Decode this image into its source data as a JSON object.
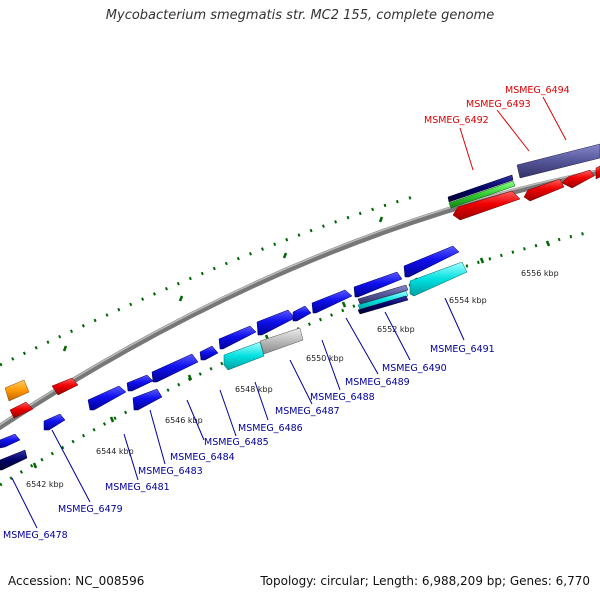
{
  "title": "Mycobacterium smegmatis str. MC2 155, complete genome",
  "footer": {
    "accession": "Accession: NC_008596",
    "summary": "Topology: circular; Length: 6,988,209 bp; Genes: 6,770"
  },
  "colors": {
    "forward": "#0000ee",
    "reverse": "#ee0000",
    "cyan": "#00dddd",
    "navy": "#000066",
    "slate": "#555599",
    "green_tick": "#006600",
    "backbone": "#888888",
    "label_blue": "#000099",
    "label_red": "#dd0000"
  },
  "scale_labels": [
    {
      "id": "6542",
      "text": "6542 kbp"
    },
    {
      "id": "6544",
      "text": "6544 kbp"
    },
    {
      "id": "6546",
      "text": "6546 kbp"
    },
    {
      "id": "6548",
      "text": "6548 kbp"
    },
    {
      "id": "6550",
      "text": "6550 kbp"
    },
    {
      "id": "6552",
      "text": "6552 kbp"
    },
    {
      "id": "6554",
      "text": "6554 kbp"
    },
    {
      "id": "6556",
      "text": "6556 kbp"
    }
  ],
  "gene_labels": [
    {
      "id": "6478",
      "text": "MSMEG_6478"
    },
    {
      "id": "6479",
      "text": "MSMEG_6479"
    },
    {
      "id": "6481",
      "text": "MSMEG_6481"
    },
    {
      "id": "6483",
      "text": "MSMEG_6483"
    },
    {
      "id": "6484",
      "text": "MSMEG_6484"
    },
    {
      "id": "6485",
      "text": "MSMEG_6485"
    },
    {
      "id": "6486",
      "text": "MSMEG_6486"
    },
    {
      "id": "6487",
      "text": "MSMEG_6487"
    },
    {
      "id": "6488",
      "text": "MSMEG_6488"
    },
    {
      "id": "6489",
      "text": "MSMEG_6489"
    },
    {
      "id": "6490",
      "text": "MSMEG_6490"
    },
    {
      "id": "6491",
      "text": "MSMEG_6491"
    },
    {
      "id": "6492",
      "text": "MSMEG_6492"
    },
    {
      "id": "6493",
      "text": "MSMEG_6493"
    },
    {
      "id": "6494",
      "text": "MSMEG_6494"
    }
  ]
}
